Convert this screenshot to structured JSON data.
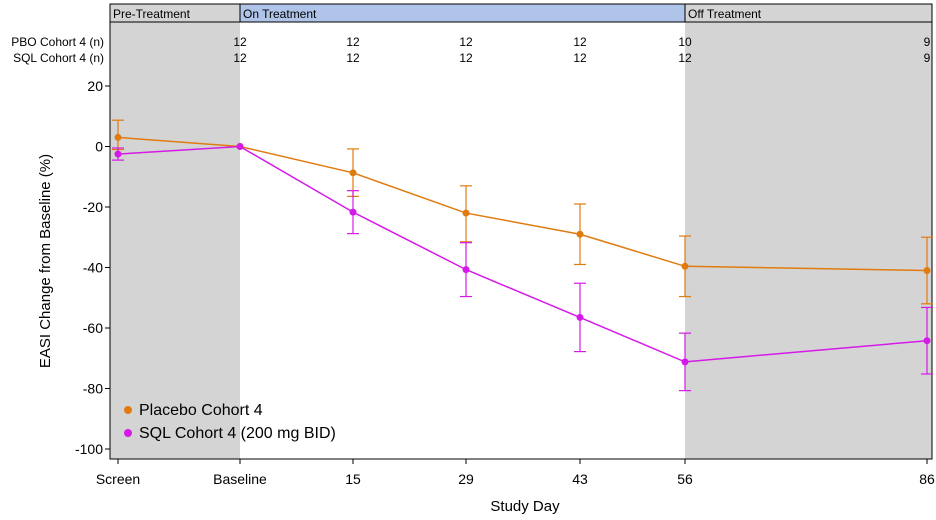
{
  "chart_data": {
    "type": "line",
    "xlabel": "Study Day",
    "ylabel": "EASI Change from Baseline (%)",
    "ylim": [
      -100,
      20
    ],
    "yticks": [
      20,
      0,
      -20,
      -40,
      -60,
      -80,
      -100
    ],
    "categories": [
      "Screen",
      "Baseline",
      "15",
      "29",
      "43",
      "56",
      "86"
    ],
    "phases": [
      {
        "label": "Pre-Treatment",
        "from": "Screen",
        "to": "Baseline",
        "color": "#d4d4d4"
      },
      {
        "label": "On Treatment",
        "from": "Baseline",
        "to": "56",
        "color": "#b0c4ea"
      },
      {
        "label": "Off Treatment",
        "from": "56",
        "to": "86",
        "color": "#d4d4d4"
      }
    ],
    "n_rows": [
      {
        "label": "PBO Cohort 4 (n)",
        "values": [
          "",
          "12",
          "12",
          "12",
          "12",
          "10",
          "9"
        ]
      },
      {
        "label": "SQL Cohort 4 (n)",
        "values": [
          "",
          "12",
          "12",
          "12",
          "12",
          "12",
          "9"
        ]
      }
    ],
    "series": [
      {
        "name": "Placebo Cohort 4",
        "color": "#e07b10",
        "values": [
          3,
          0,
          -8.7,
          -22,
          -29,
          -39.6,
          -41
        ],
        "lower": [
          -1,
          0,
          -16.5,
          -31.5,
          -39,
          -49.6,
          -52
        ],
        "upper": [
          8.7,
          0,
          -0.8,
          -13,
          -19,
          -29.6,
          -30
        ]
      },
      {
        "name": "SQL Cohort 4 (200 mg BID)",
        "color": "#d51ae8",
        "values": [
          -2.5,
          0,
          -21.7,
          -40.7,
          -56.5,
          -71.2,
          -64.2
        ],
        "lower": [
          -4.5,
          0,
          -28.8,
          -49.6,
          -67.8,
          -80.7,
          -75.2
        ],
        "upper": [
          -0.5,
          0,
          -14.6,
          -31.8,
          -45.2,
          -61.7,
          -53.2
        ]
      }
    ],
    "legend_position": "bottom-left",
    "grid": false
  }
}
